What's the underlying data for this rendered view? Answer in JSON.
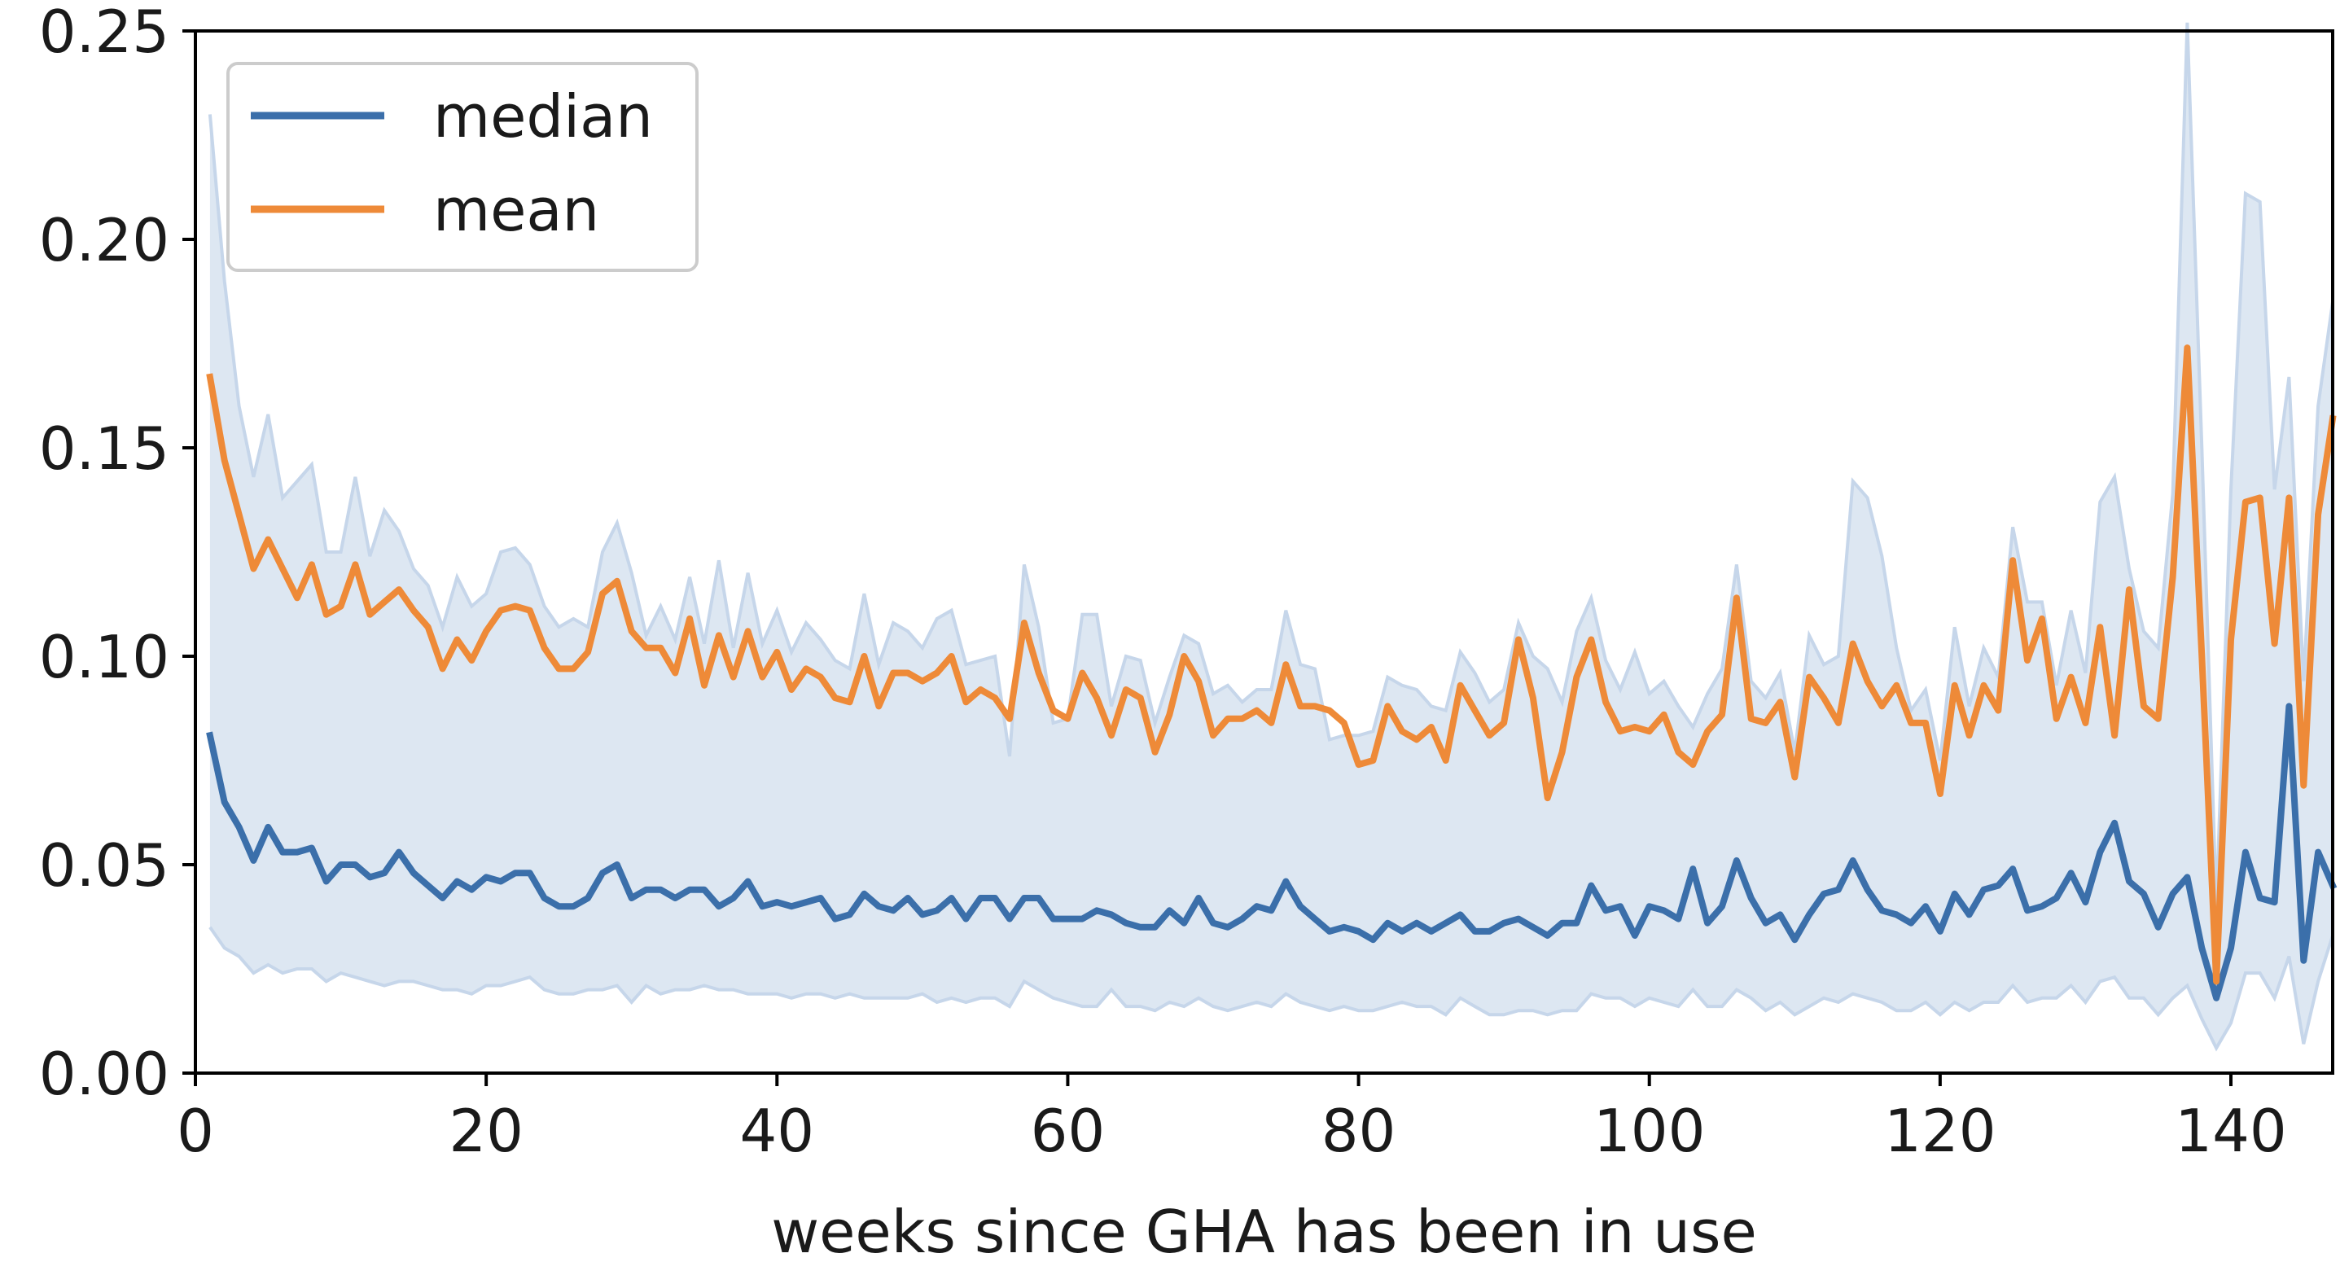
{
  "chart_data": {
    "type": "line",
    "xlabel": "weeks since GHA has been in use",
    "ylabel": "",
    "xlim": [
      0,
      147
    ],
    "ylim": [
      0,
      0.25
    ],
    "xticks": [
      0,
      20,
      40,
      60,
      80,
      100,
      120,
      140
    ],
    "yticks": [
      "0.00",
      "0.05",
      "0.10",
      "0.15",
      "0.20",
      "0.25"
    ],
    "grid": false,
    "legend_position": "top-left",
    "x": [
      1,
      2,
      3,
      4,
      5,
      6,
      7,
      8,
      9,
      10,
      11,
      12,
      13,
      14,
      15,
      16,
      17,
      18,
      19,
      20,
      21,
      22,
      23,
      24,
      25,
      26,
      27,
      28,
      29,
      30,
      31,
      32,
      33,
      34,
      35,
      36,
      37,
      38,
      39,
      40,
      41,
      42,
      43,
      44,
      45,
      46,
      47,
      48,
      49,
      50,
      51,
      52,
      53,
      54,
      55,
      56,
      57,
      58,
      59,
      60,
      61,
      62,
      63,
      64,
      65,
      66,
      67,
      68,
      69,
      70,
      71,
      72,
      73,
      74,
      75,
      76,
      77,
      78,
      79,
      80,
      81,
      82,
      83,
      84,
      85,
      86,
      87,
      88,
      89,
      90,
      91,
      92,
      93,
      94,
      95,
      96,
      97,
      98,
      99,
      100,
      101,
      102,
      103,
      104,
      105,
      106,
      107,
      108,
      109,
      110,
      111,
      112,
      113,
      114,
      115,
      116,
      117,
      118,
      119,
      120,
      121,
      122,
      123,
      124,
      125,
      126,
      127,
      128,
      129,
      130,
      131,
      132,
      133,
      134,
      135,
      136,
      137,
      138,
      139,
      140,
      141,
      142,
      143,
      144,
      145,
      146,
      147
    ],
    "series": [
      {
        "name": "median",
        "color": "#3b6faa",
        "values": [
          0.081,
          0.065,
          0.059,
          0.051,
          0.059,
          0.053,
          0.053,
          0.054,
          0.046,
          0.05,
          0.05,
          0.047,
          0.048,
          0.053,
          0.048,
          0.045,
          0.042,
          0.046,
          0.044,
          0.047,
          0.046,
          0.048,
          0.048,
          0.042,
          0.04,
          0.04,
          0.042,
          0.048,
          0.05,
          0.042,
          0.044,
          0.044,
          0.042,
          0.044,
          0.044,
          0.04,
          0.042,
          0.046,
          0.04,
          0.041,
          0.04,
          0.041,
          0.042,
          0.037,
          0.038,
          0.043,
          0.04,
          0.039,
          0.042,
          0.038,
          0.039,
          0.042,
          0.037,
          0.042,
          0.042,
          0.037,
          0.042,
          0.042,
          0.037,
          0.037,
          0.037,
          0.039,
          0.038,
          0.036,
          0.035,
          0.035,
          0.039,
          0.036,
          0.042,
          0.036,
          0.035,
          0.037,
          0.04,
          0.039,
          0.046,
          0.04,
          0.037,
          0.034,
          0.035,
          0.034,
          0.032,
          0.036,
          0.034,
          0.036,
          0.034,
          0.036,
          0.038,
          0.034,
          0.034,
          0.036,
          0.037,
          0.035,
          0.033,
          0.036,
          0.036,
          0.045,
          0.039,
          0.04,
          0.033,
          0.04,
          0.039,
          0.037,
          0.049,
          0.036,
          0.04,
          0.051,
          0.042,
          0.036,
          0.038,
          0.032,
          0.038,
          0.043,
          0.044,
          0.051,
          0.044,
          0.039,
          0.038,
          0.036,
          0.04,
          0.034,
          0.043,
          0.038,
          0.044,
          0.045,
          0.049,
          0.039,
          0.04,
          0.042,
          0.048,
          0.041,
          0.053,
          0.06,
          0.046,
          0.043,
          0.035,
          0.043,
          0.047,
          0.03,
          0.018,
          0.03,
          0.053,
          0.042,
          0.041,
          0.088,
          0.027,
          0.053,
          0.045
        ]
      },
      {
        "name": "mean",
        "color": "#ee8a38",
        "values": [
          0.167,
          0.147,
          0.134,
          0.121,
          0.128,
          0.121,
          0.114,
          0.122,
          0.11,
          0.112,
          0.122,
          0.11,
          0.113,
          0.116,
          0.111,
          0.107,
          0.097,
          0.104,
          0.099,
          0.106,
          0.111,
          0.112,
          0.111,
          0.102,
          0.097,
          0.097,
          0.101,
          0.115,
          0.118,
          0.106,
          0.102,
          0.102,
          0.096,
          0.109,
          0.093,
          0.105,
          0.095,
          0.106,
          0.095,
          0.101,
          0.092,
          0.097,
          0.095,
          0.09,
          0.089,
          0.1,
          0.088,
          0.096,
          0.096,
          0.094,
          0.096,
          0.1,
          0.089,
          0.092,
          0.09,
          0.085,
          0.108,
          0.096,
          0.087,
          0.085,
          0.096,
          0.09,
          0.081,
          0.092,
          0.09,
          0.077,
          0.086,
          0.1,
          0.094,
          0.081,
          0.085,
          0.085,
          0.087,
          0.084,
          0.098,
          0.088,
          0.088,
          0.087,
          0.084,
          0.074,
          0.075,
          0.088,
          0.082,
          0.08,
          0.083,
          0.075,
          0.093,
          0.087,
          0.081,
          0.084,
          0.104,
          0.09,
          0.066,
          0.077,
          0.095,
          0.104,
          0.089,
          0.082,
          0.083,
          0.082,
          0.086,
          0.077,
          0.074,
          0.082,
          0.086,
          0.114,
          0.085,
          0.084,
          0.089,
          0.071,
          0.095,
          0.09,
          0.084,
          0.103,
          0.094,
          0.088,
          0.093,
          0.084,
          0.084,
          0.067,
          0.093,
          0.081,
          0.093,
          0.087,
          0.123,
          0.099,
          0.109,
          0.085,
          0.095,
          0.084,
          0.107,
          0.081,
          0.116,
          0.088,
          0.085,
          0.119,
          0.174,
          0.1,
          0.022,
          0.104,
          0.137,
          0.138,
          0.103,
          0.138,
          0.069,
          0.134,
          0.157
        ]
      }
    ],
    "band": {
      "color": "#dde7f2",
      "edge_color": "#c6d6ea",
      "lower": [
        0.035,
        0.03,
        0.028,
        0.024,
        0.026,
        0.024,
        0.025,
        0.025,
        0.022,
        0.024,
        0.023,
        0.022,
        0.021,
        0.022,
        0.022,
        0.021,
        0.02,
        0.02,
        0.019,
        0.021,
        0.021,
        0.022,
        0.023,
        0.02,
        0.019,
        0.019,
        0.02,
        0.02,
        0.021,
        0.017,
        0.021,
        0.019,
        0.02,
        0.02,
        0.021,
        0.02,
        0.02,
        0.019,
        0.019,
        0.019,
        0.018,
        0.019,
        0.019,
        0.018,
        0.019,
        0.018,
        0.018,
        0.018,
        0.018,
        0.019,
        0.017,
        0.018,
        0.017,
        0.018,
        0.018,
        0.016,
        0.022,
        0.02,
        0.018,
        0.017,
        0.016,
        0.016,
        0.02,
        0.016,
        0.016,
        0.015,
        0.017,
        0.016,
        0.018,
        0.016,
        0.015,
        0.016,
        0.017,
        0.016,
        0.019,
        0.017,
        0.016,
        0.015,
        0.016,
        0.015,
        0.015,
        0.016,
        0.017,
        0.016,
        0.016,
        0.014,
        0.018,
        0.016,
        0.014,
        0.014,
        0.015,
        0.015,
        0.014,
        0.015,
        0.015,
        0.019,
        0.018,
        0.018,
        0.016,
        0.018,
        0.017,
        0.016,
        0.02,
        0.016,
        0.016,
        0.02,
        0.018,
        0.015,
        0.017,
        0.014,
        0.016,
        0.018,
        0.017,
        0.019,
        0.018,
        0.017,
        0.015,
        0.015,
        0.017,
        0.014,
        0.017,
        0.015,
        0.017,
        0.017,
        0.021,
        0.017,
        0.018,
        0.018,
        0.021,
        0.017,
        0.022,
        0.023,
        0.018,
        0.018,
        0.014,
        0.018,
        0.021,
        0.013,
        0.006,
        0.012,
        0.024,
        0.024,
        0.018,
        0.028,
        0.007,
        0.022,
        0.033
      ],
      "upper": [
        0.23,
        0.19,
        0.16,
        0.143,
        0.158,
        0.138,
        0.142,
        0.146,
        0.125,
        0.125,
        0.143,
        0.124,
        0.135,
        0.13,
        0.121,
        0.117,
        0.107,
        0.119,
        0.112,
        0.115,
        0.125,
        0.126,
        0.122,
        0.112,
        0.107,
        0.109,
        0.107,
        0.125,
        0.132,
        0.12,
        0.105,
        0.112,
        0.104,
        0.119,
        0.103,
        0.123,
        0.102,
        0.12,
        0.103,
        0.111,
        0.101,
        0.108,
        0.104,
        0.099,
        0.097,
        0.115,
        0.098,
        0.108,
        0.106,
        0.102,
        0.109,
        0.111,
        0.098,
        0.099,
        0.1,
        0.076,
        0.122,
        0.107,
        0.084,
        0.085,
        0.11,
        0.11,
        0.088,
        0.1,
        0.099,
        0.084,
        0.095,
        0.105,
        0.103,
        0.091,
        0.093,
        0.089,
        0.092,
        0.092,
        0.111,
        0.098,
        0.097,
        0.08,
        0.081,
        0.081,
        0.082,
        0.095,
        0.093,
        0.092,
        0.088,
        0.087,
        0.101,
        0.096,
        0.089,
        0.092,
        0.108,
        0.1,
        0.097,
        0.089,
        0.106,
        0.114,
        0.099,
        0.092,
        0.101,
        0.091,
        0.094,
        0.088,
        0.083,
        0.091,
        0.097,
        0.122,
        0.094,
        0.09,
        0.096,
        0.077,
        0.105,
        0.098,
        0.1,
        0.142,
        0.138,
        0.124,
        0.102,
        0.087,
        0.092,
        0.075,
        0.107,
        0.088,
        0.102,
        0.095,
        0.131,
        0.113,
        0.113,
        0.093,
        0.111,
        0.096,
        0.137,
        0.143,
        0.121,
        0.106,
        0.102,
        0.139,
        0.252,
        0.15,
        0.04,
        0.14,
        0.211,
        0.209,
        0.14,
        0.167,
        0.094,
        0.16,
        0.185
      ]
    }
  }
}
